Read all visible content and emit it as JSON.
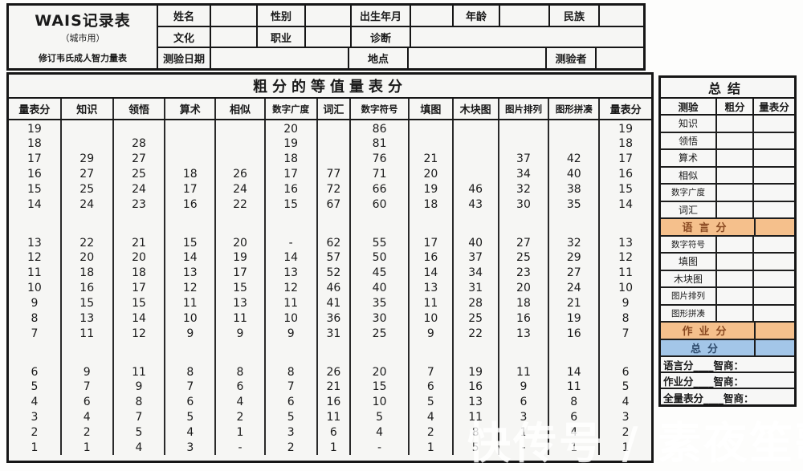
{
  "form_header": {
    "title": "WAIS记录表",
    "subtitle": "（城市用）",
    "subtitle2": "修订韦氏成人智力量表",
    "fields": {
      "name": "姓名",
      "gender": "性别",
      "birth": "出生年月",
      "age": "年龄",
      "ethnicity": "民族",
      "education": "文化",
      "occupation": "职业",
      "diagnosis": "诊断",
      "test_date": "测验日期",
      "place": "地点",
      "tester": "测验者"
    }
  },
  "main_table": {
    "title": "粗分的等值量表分",
    "columns": [
      "量表分",
      "知识",
      "领悟",
      "算术",
      "相似",
      "数字广度",
      "词汇",
      "数字符号",
      "填图",
      "木块图",
      "图片排列",
      "图形拼凑",
      "量表分"
    ],
    "row_groups": [
      [
        [
          "19",
          "",
          "",
          "",
          "",
          "20",
          "",
          "86",
          "",
          "",
          "",
          "",
          "19"
        ],
        [
          "18",
          "",
          "28",
          "",
          "",
          "19",
          "",
          "81",
          "",
          "",
          "",
          "",
          "18"
        ],
        [
          "17",
          "29",
          "27",
          "",
          "",
          "18",
          "",
          "76",
          "21",
          "",
          "37",
          "42",
          "17"
        ],
        [
          "16",
          "27",
          "25",
          "18",
          "26",
          "17",
          "77",
          "71",
          "20",
          "",
          "34",
          "40",
          "16"
        ],
        [
          "15",
          "25",
          "24",
          "17",
          "24",
          "16",
          "72",
          "66",
          "19",
          "46",
          "32",
          "38",
          "15"
        ],
        [
          "14",
          "24",
          "23",
          "16",
          "22",
          "15",
          "67",
          "60",
          "18",
          "43",
          "30",
          "35",
          "14"
        ]
      ],
      [
        [
          "13",
          "22",
          "21",
          "15",
          "20",
          "-",
          "62",
          "55",
          "17",
          "40",
          "27",
          "32",
          "13"
        ],
        [
          "12",
          "20",
          "20",
          "14",
          "19",
          "14",
          "57",
          "50",
          "16",
          "37",
          "25",
          "29",
          "12"
        ],
        [
          "11",
          "18",
          "18",
          "13",
          "17",
          "13",
          "52",
          "45",
          "14",
          "34",
          "23",
          "27",
          "11"
        ],
        [
          "10",
          "16",
          "17",
          "12",
          "15",
          "12",
          "46",
          "40",
          "13",
          "31",
          "20",
          "24",
          "10"
        ],
        [
          "9",
          "15",
          "15",
          "11",
          "13",
          "11",
          "41",
          "35",
          "11",
          "28",
          "18",
          "21",
          "9"
        ],
        [
          "8",
          "13",
          "14",
          "10",
          "11",
          "10",
          "36",
          "30",
          "10",
          "25",
          "16",
          "19",
          "8"
        ],
        [
          "7",
          "11",
          "12",
          "9",
          "9",
          "9",
          "31",
          "25",
          "9",
          "22",
          "13",
          "16",
          "7"
        ]
      ],
      [
        [
          "6",
          "9",
          "11",
          "8",
          "8",
          "8",
          "26",
          "20",
          "7",
          "19",
          "11",
          "14",
          "6"
        ],
        [
          "5",
          "7",
          "9",
          "7",
          "6",
          "7",
          "21",
          "15",
          "6",
          "16",
          "9",
          "11",
          "5"
        ],
        [
          "4",
          "6",
          "8",
          "6",
          "4",
          "6",
          "16",
          "10",
          "5",
          "13",
          "6",
          "8",
          "4"
        ],
        [
          "3",
          "4",
          "7",
          "5",
          "2",
          "5",
          "11",
          "5",
          "4",
          "11",
          "3",
          "6",
          "3"
        ],
        [
          "2",
          "2",
          "5",
          "4",
          "1",
          "3",
          "6",
          "4",
          "2",
          "8",
          "1",
          "4",
          "2"
        ],
        [
          "1",
          "1",
          "4",
          "3",
          "-",
          "2",
          "1",
          "-",
          "1",
          "5",
          "-",
          "1",
          "1"
        ]
      ]
    ]
  },
  "summary": {
    "title": "总结",
    "columns": [
      "测验",
      "粗分",
      "量表分"
    ],
    "rows": [
      {
        "label": "知识",
        "type": "test"
      },
      {
        "label": "领悟",
        "type": "test"
      },
      {
        "label": "算术",
        "type": "test"
      },
      {
        "label": "相似",
        "type": "test"
      },
      {
        "label": "数字广度",
        "type": "test"
      },
      {
        "label": "词汇",
        "type": "test"
      },
      {
        "label": "语言分",
        "type": "verbal"
      },
      {
        "label": "数字符号",
        "type": "test"
      },
      {
        "label": "填图",
        "type": "test"
      },
      {
        "label": "木块图",
        "type": "test"
      },
      {
        "label": "图片排列",
        "type": "test"
      },
      {
        "label": "图形拼凑",
        "type": "test"
      },
      {
        "label": "作业分",
        "type": "performance"
      },
      {
        "label": "总分",
        "type": "total"
      }
    ],
    "iq_lines": [
      "语言分____智商：",
      "作业分____智商：",
      "全量表分____智商："
    ],
    "colors": {
      "section_orange": "#f5c08c",
      "section_blue": "#a3c6e8"
    }
  },
  "watermark": "快传号 / 素夜笙歌"
}
